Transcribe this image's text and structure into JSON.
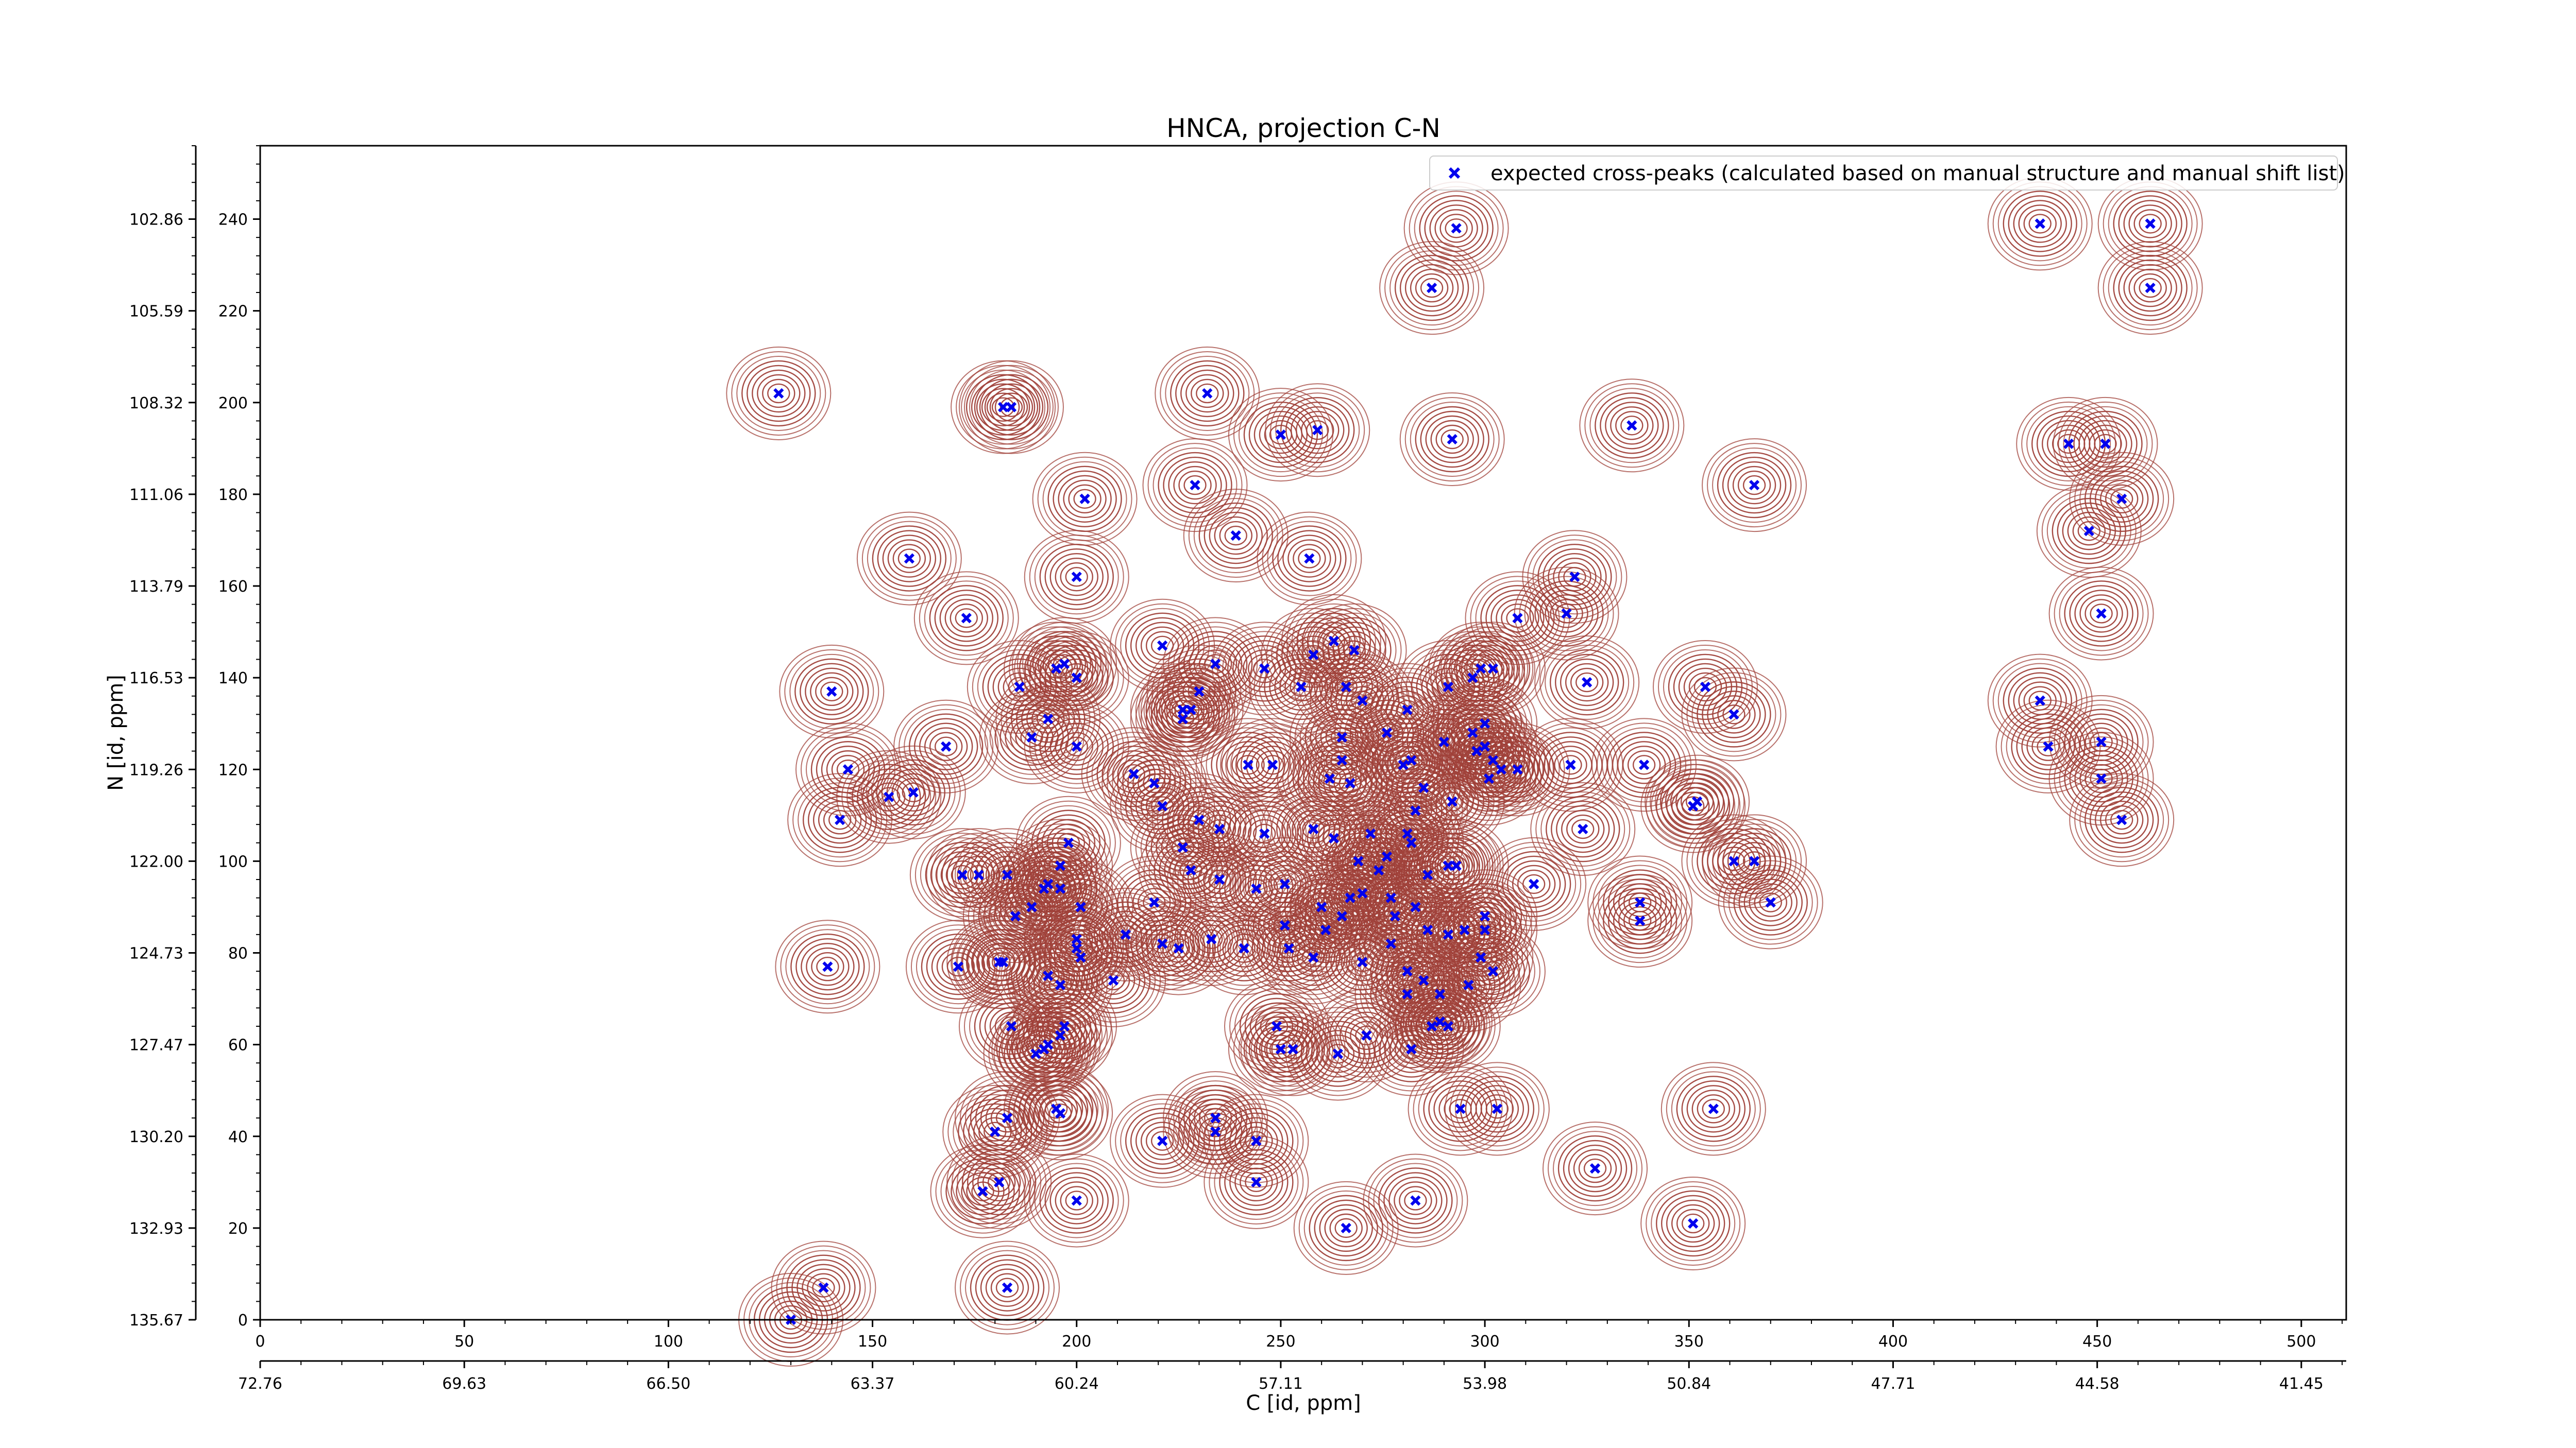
{
  "chart_data": {
    "type": "scatter",
    "title": "HNCA, projection C-N",
    "xlabel": "C [id, ppm]",
    "ylabel": "N [id, ppm]",
    "xlim": [
      0,
      511
    ],
    "ylim": [
      0,
      256
    ],
    "x_index_ticks": [
      "0",
      "50",
      "100",
      "150",
      "200",
      "250",
      "300",
      "350",
      "400",
      "450",
      "500"
    ],
    "x_ppm_ticks": [
      "72.76",
      "69.63",
      "66.50",
      "63.37",
      "60.24",
      "57.11",
      "53.98",
      "50.84",
      "47.71",
      "44.58",
      "41.45"
    ],
    "y_index_ticks": [
      "0",
      "20",
      "40",
      "60",
      "80",
      "100",
      "120",
      "140",
      "160",
      "180",
      "200",
      "220",
      "240"
    ],
    "y_ppm_ticks": [
      "135.67",
      "132.93",
      "130.20",
      "127.47",
      "124.73",
      "122.00",
      "119.26",
      "116.53",
      "113.79",
      "111.06",
      "108.32",
      "105.59",
      "102.86"
    ],
    "grid": false,
    "legend": {
      "position": "top-right",
      "entries": [
        "expected cross-peaks (calculated based on manual structure and manual shift list)"
      ]
    },
    "colors": {
      "contour": "#a0413a",
      "negative_contour": "#3f8f5a",
      "marker": "#0000ee"
    },
    "series": [
      {
        "name": "expected cross-peaks (calculated based on manual structure and manual shift list)",
        "marker": "x",
        "points": [
          [
            127,
            202
          ],
          [
            182,
            199
          ],
          [
            184,
            199
          ],
          [
            232,
            202
          ],
          [
            250,
            193
          ],
          [
            259,
            194
          ],
          [
            292,
            192
          ],
          [
            336,
            195
          ],
          [
            293,
            238
          ],
          [
            287,
            225
          ],
          [
            436,
            239
          ],
          [
            463,
            239
          ],
          [
            463,
            225
          ],
          [
            229,
            182
          ],
          [
            202,
            179
          ],
          [
            239,
            171
          ],
          [
            200,
            162
          ],
          [
            159,
            166
          ],
          [
            173,
            153
          ],
          [
            257,
            166
          ],
          [
            366,
            182
          ],
          [
            443,
            191
          ],
          [
            452,
            191
          ],
          [
            456,
            179
          ],
          [
            448,
            172
          ],
          [
            451,
            154
          ],
          [
            322,
            162
          ],
          [
            308,
            153
          ],
          [
            320,
            154
          ],
          [
            221,
            147
          ],
          [
            234,
            143
          ],
          [
            246,
            142
          ],
          [
            258,
            145
          ],
          [
            263,
            148
          ],
          [
            268,
            146
          ],
          [
            195,
            142
          ],
          [
            197,
            143
          ],
          [
            200,
            140
          ],
          [
            186,
            138
          ],
          [
            140,
            137
          ],
          [
            230,
            137
          ],
          [
            255,
            138
          ],
          [
            266,
            138
          ],
          [
            270,
            135
          ],
          [
            291,
            138
          ],
          [
            299,
            142
          ],
          [
            302,
            142
          ],
          [
            297,
            140
          ],
          [
            325,
            139
          ],
          [
            354,
            138
          ],
          [
            361,
            132
          ],
          [
            436,
            135
          ],
          [
            226,
            133
          ],
          [
            226,
            131
          ],
          [
            228,
            133
          ],
          [
            193,
            131
          ],
          [
            189,
            127
          ],
          [
            200,
            125
          ],
          [
            168,
            125
          ],
          [
            130,
            0
          ],
          [
            265,
            127
          ],
          [
            276,
            128
          ],
          [
            290,
            126
          ],
          [
            297,
            128
          ],
          [
            300,
            130
          ],
          [
            281,
            133
          ],
          [
            300,
            125
          ],
          [
            298,
            124
          ],
          [
            144,
            120
          ],
          [
            154,
            114
          ],
          [
            160,
            115
          ],
          [
            214,
            119
          ],
          [
            219,
            117
          ],
          [
            242,
            121
          ],
          [
            248,
            121
          ],
          [
            280,
            121
          ],
          [
            292,
            113
          ],
          [
            301,
            118
          ],
          [
            304,
            120
          ],
          [
            308,
            120
          ],
          [
            302,
            122
          ],
          [
            321,
            121
          ],
          [
            339,
            121
          ],
          [
            351,
            112
          ],
          [
            438,
            125
          ],
          [
            451,
            126
          ],
          [
            451,
            118
          ],
          [
            456,
            109
          ],
          [
            265,
            122
          ],
          [
            267,
            117
          ],
          [
            282,
            122
          ],
          [
            285,
            116
          ],
          [
            221,
            112
          ],
          [
            230,
            109
          ],
          [
            262,
            118
          ],
          [
            142,
            109
          ],
          [
            198,
            104
          ],
          [
            226,
            103
          ],
          [
            228,
            98
          ],
          [
            235,
            107
          ],
          [
            246,
            106
          ],
          [
            258,
            107
          ],
          [
            263,
            105
          ],
          [
            272,
            106
          ],
          [
            269,
            100
          ],
          [
            276,
            101
          ],
          [
            282,
            104
          ],
          [
            293,
            99
          ],
          [
            283,
            111
          ],
          [
            281,
            106
          ],
          [
            312,
            95
          ],
          [
            324,
            107
          ],
          [
            352,
            113
          ],
          [
            361,
            100
          ],
          [
            338,
            91
          ],
          [
            338,
            87
          ],
          [
            183,
            97
          ],
          [
            172,
            97
          ],
          [
            176,
            97
          ],
          [
            189,
            90
          ],
          [
            192,
            94
          ],
          [
            196,
            94
          ],
          [
            196,
            99
          ],
          [
            193,
            95
          ],
          [
            185,
            88
          ],
          [
            201,
            90
          ],
          [
            200,
            83
          ],
          [
            200,
            81
          ],
          [
            201,
            79
          ],
          [
            212,
            84
          ],
          [
            219,
            91
          ],
          [
            221,
            82
          ],
          [
            225,
            81
          ],
          [
            233,
            83
          ],
          [
            235,
            96
          ],
          [
            244,
            94
          ],
          [
            251,
            95
          ],
          [
            260,
            90
          ],
          [
            267,
            92
          ],
          [
            270,
            93
          ],
          [
            265,
            88
          ],
          [
            277,
            92
          ],
          [
            283,
            90
          ],
          [
            274,
            98
          ],
          [
            286,
            97
          ],
          [
            291,
            99
          ],
          [
            300,
            88
          ],
          [
            300,
            85
          ],
          [
            295,
            85
          ],
          [
            291,
            84
          ],
          [
            286,
            85
          ],
          [
            278,
            88
          ],
          [
            241,
            81
          ],
          [
            252,
            81
          ],
          [
            258,
            79
          ],
          [
            251,
            86
          ],
          [
            261,
            85
          ],
          [
            270,
            78
          ],
          [
            277,
            82
          ],
          [
            281,
            76
          ],
          [
            285,
            74
          ],
          [
            299,
            79
          ],
          [
            302,
            76
          ],
          [
            296,
            73
          ],
          [
            289,
            71
          ],
          [
            281,
            71
          ],
          [
            289,
            65
          ],
          [
            287,
            64
          ],
          [
            291,
            64
          ],
          [
            171,
            77
          ],
          [
            181,
            78
          ],
          [
            182,
            78
          ],
          [
            193,
            75
          ],
          [
            196,
            73
          ],
          [
            209,
            74
          ],
          [
            139,
            77
          ],
          [
            184,
            64
          ],
          [
            197,
            64
          ],
          [
            196,
            62
          ],
          [
            192,
            59
          ],
          [
            193,
            60
          ],
          [
            190,
            58
          ],
          [
            249,
            64
          ],
          [
            250,
            59
          ],
          [
            253,
            59
          ],
          [
            264,
            58
          ],
          [
            271,
            62
          ],
          [
            282,
            59
          ],
          [
            294,
            46
          ],
          [
            303,
            46
          ],
          [
            356,
            46
          ],
          [
            327,
            33
          ],
          [
            180,
            41
          ],
          [
            183,
            44
          ],
          [
            196,
            45
          ],
          [
            195,
            46
          ],
          [
            221,
            39
          ],
          [
            234,
            44
          ],
          [
            234,
            41
          ],
          [
            244,
            39
          ],
          [
            244,
            30
          ],
          [
            181,
            30
          ],
          [
            177,
            28
          ],
          [
            200,
            26
          ],
          [
            266,
            20
          ],
          [
            283,
            26
          ],
          [
            351,
            21
          ],
          [
            138,
            7
          ],
          [
            183,
            7
          ],
          [
            366,
            100
          ],
          [
            370,
            91
          ]
        ]
      }
    ]
  }
}
